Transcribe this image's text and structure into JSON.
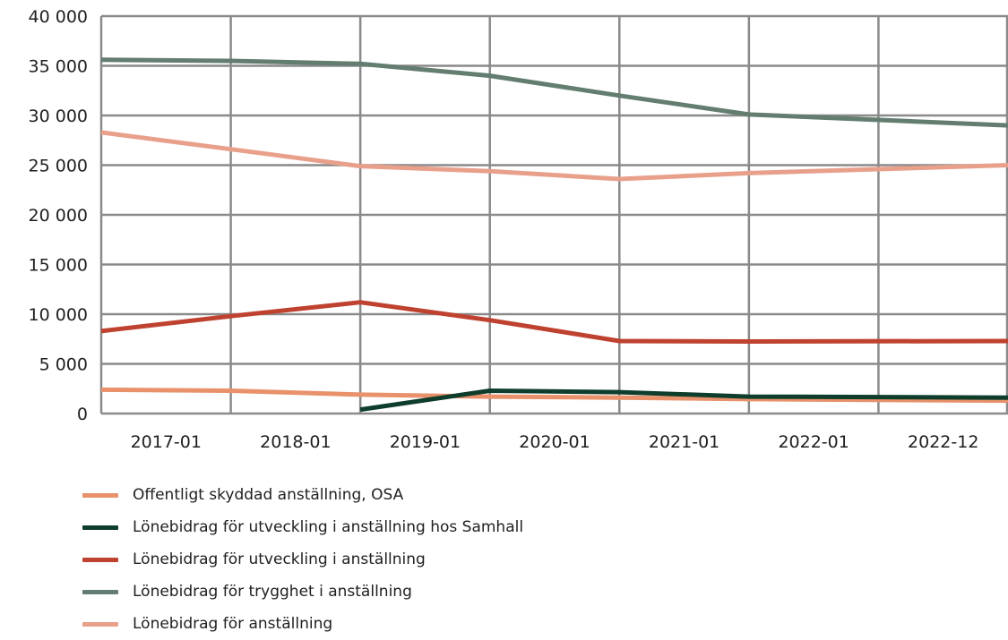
{
  "chart_data": {
    "type": "line",
    "categories": [
      "2017-01",
      "2018-01",
      "2019-01",
      "2020-01",
      "2021-01",
      "2022-01",
      "2022-12"
    ],
    "y_tick_labels": [
      "0",
      "5 000",
      "10 000",
      "15 000",
      "20 000",
      "25 000",
      "30 000",
      "35 000",
      "40 000"
    ],
    "ylim": [
      0,
      40000
    ],
    "grid": true,
    "legend_position": "bottom",
    "series": [
      {
        "name": "Offentligt skyddad anställning, OSA",
        "color": "#e8916a",
        "values": [
          2400,
          2300,
          1900,
          1700,
          1600,
          1450,
          1300
        ]
      },
      {
        "name": "Lönebidrag för utveckling i anställning hos Samhall",
        "color": "#0e3d2c",
        "values": [
          null,
          null,
          400,
          2300,
          2150,
          1700,
          1600
        ]
      },
      {
        "name": "Lönebidrag för utveckling i anställning",
        "color": "#bf4230",
        "values": [
          8300,
          9800,
          11200,
          9400,
          7300,
          7250,
          7300
        ]
      },
      {
        "name": "Lönebidrag för trygghet i anställning",
        "color": "#637d70",
        "values": [
          35600,
          35500,
          35200,
          34000,
          32000,
          30100,
          29000
        ]
      },
      {
        "name": "Lönebidrag för anställning",
        "color": "#e9a08b",
        "values": [
          28300,
          26600,
          24900,
          24400,
          23600,
          24200,
          25000
        ]
      }
    ]
  }
}
